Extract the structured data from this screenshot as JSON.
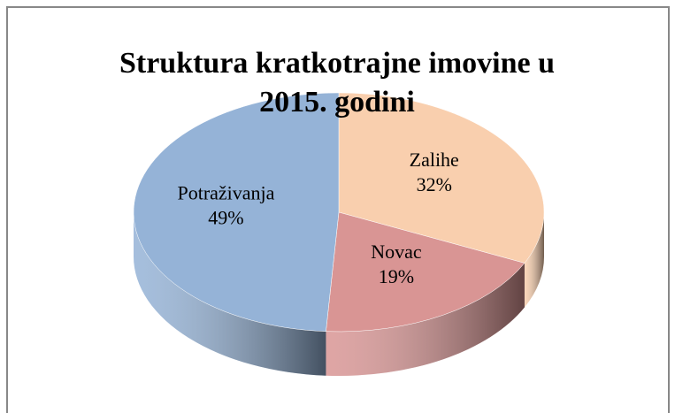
{
  "chart_data": {
    "type": "pie",
    "title": "Struktura kratkotrajne imovine u 2015. godini",
    "categories": [
      "Zalihe",
      "Novac",
      "Potraživanja"
    ],
    "values": [
      32,
      19,
      49
    ],
    "value_labels": [
      "32%",
      "19%",
      "49%"
    ],
    "colors": [
      "#f9cfae",
      "#d99594",
      "#95b3d7"
    ]
  }
}
